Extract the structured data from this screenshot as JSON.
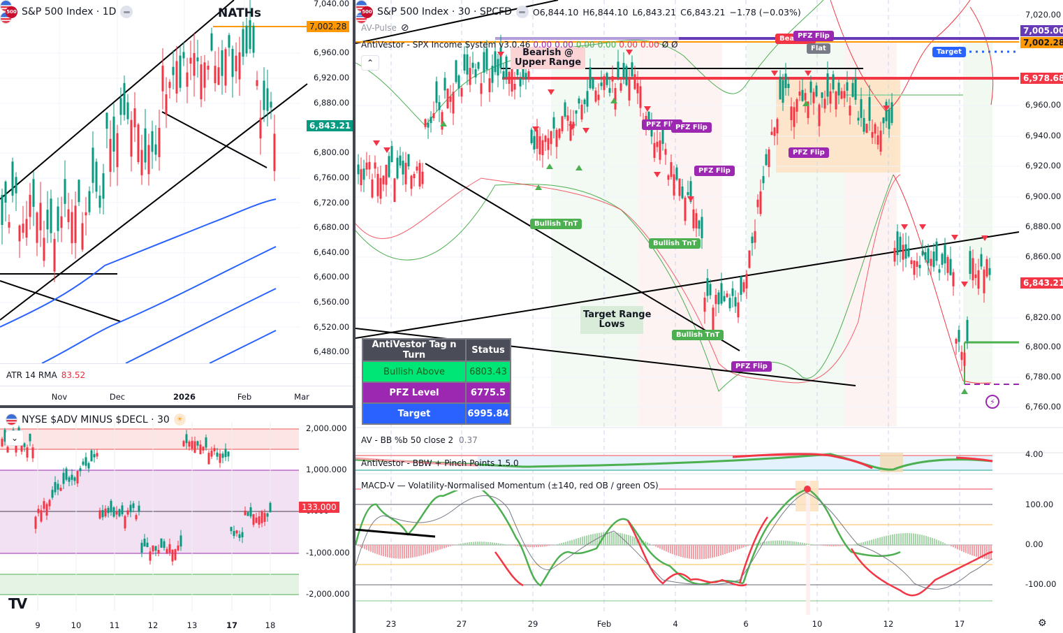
{
  "left_top": {
    "symbol_badge": "500",
    "title": "S&P 500 Index · 1D",
    "annotation": "NATHs",
    "price_ticks": [
      "7,040.00",
      "6,960.00",
      "6,920.00",
      "6,880.00",
      "6,800.00",
      "6,760.00",
      "6,720.00",
      "6,680.00",
      "6,640.00",
      "6,600.00",
      "6,560.00",
      "6,520.00",
      "6,480.00"
    ],
    "orange_tag": "7,002.28",
    "last_price_tag": "6,843.21",
    "atr_label": "ATR 14 RMA",
    "atr_value": "83.52",
    "x_ticks": [
      "Nov",
      "Dec",
      "2026",
      "Feb",
      "Mar"
    ]
  },
  "left_bottom": {
    "title": "NYSE $ADV MINUS $DECL · 30",
    "ticks": [
      "2,000.000",
      "1,000.000",
      "0.000",
      "-1,000.000",
      "-2,000.000"
    ],
    "last_value_tag": "133.000",
    "x_ticks": [
      "9",
      "10",
      "11",
      "12",
      "13",
      "17",
      "18"
    ],
    "collapse_icon": "chevron-down",
    "logo": "TV"
  },
  "main": {
    "symbol_badge": "500",
    "title": "S&P 500 Index · 30 · SPCFD",
    "ohlc": {
      "o": "O6,844.10",
      "h": "H6,844.10",
      "l": "L6,843.21",
      "c": "C6,843.21",
      "chg": "−1.78 (−0.03%)"
    },
    "pulse_label": "AV-Pulse",
    "system_label": "AntiVestor - SPX Income System v3.0.46",
    "system_values": [
      {
        "v": "0.00",
        "color": "#9c27b0"
      },
      {
        "v": "0.00",
        "color": "#9c27b0"
      },
      {
        "v": "0.00",
        "color": "#4caf50"
      },
      {
        "v": "0.00",
        "color": "#4caf50"
      },
      {
        "v": "0.00",
        "color": "#f23645"
      },
      {
        "v": "0.00",
        "color": "#f23645"
      },
      {
        "v": "Ø",
        "color": "#131722"
      },
      {
        "v": "Ø",
        "color": "#131722"
      }
    ],
    "price_ticks": [
      "7,020.00",
      "6,960.00",
      "6,940.00",
      "6,920.00",
      "6,900.00",
      "6,880.00",
      "6,860.00",
      "6,820.00",
      "6,800.00",
      "6,780.00",
      "6,760.00"
    ],
    "tags": {
      "purple": "7,005.00",
      "orange": "7,002.28",
      "red": "6,978.68",
      "last": "6,843.21"
    },
    "chips": {
      "target": "Target",
      "flat": "Flat",
      "bearish": "Bearish",
      "pfz_flip": "PFZ Flip",
      "bullish_tnt": "Bullish TnT"
    },
    "notes": {
      "bearish_upper": "Bearish @\nUpper Range",
      "target_lows": "Target Range\nLows"
    },
    "table": {
      "header": [
        "AntiVestor Tag n Turn",
        "Status"
      ],
      "rows": [
        {
          "label": "Bullish Above",
          "value": "6803.43",
          "bg": "#00e676",
          "fg": "#1b5e20"
        },
        {
          "label": "PFZ Level",
          "value": "6775.5",
          "bg": "#9c27b0",
          "fg": "#ffffff"
        },
        {
          "label": "Target",
          "value": "6995.84",
          "bg": "#2962ff",
          "fg": "#ffffff"
        }
      ]
    },
    "x_ticks": [
      "23",
      "27",
      "29",
      "Feb",
      "4",
      "6",
      "10",
      "12",
      "17"
    ]
  },
  "indicators": {
    "bbpb_label": "AV - BB %b 50 close 2",
    "bbpb_value": "0.37",
    "bbw_label": "AntiVestor - BBW + Pinch Points 1.5.0",
    "bbw_tick": "4.00",
    "macd_label": "MACD-V — Volatility-Normalised Momentum (±140, red OB / green OS)",
    "macd_ticks": [
      "100.00",
      "0.00",
      "-100.00"
    ]
  },
  "colors": {
    "up": "#089981",
    "down": "#f23645",
    "orange": "#ff9800",
    "purple": "#673ab7",
    "blue": "#2962ff",
    "green": "#4caf50"
  },
  "chart_data": [
    {
      "type": "candlestick",
      "title": "S&P 500 Index · 1D",
      "ylim": [
        6460,
        7040
      ],
      "x_ticks": [
        "Nov",
        "Dec",
        "2026",
        "Feb",
        "Mar"
      ],
      "annotations": [
        "NATHs",
        "7,002.28 all-time high line",
        "last 6,843.21"
      ],
      "indicator": {
        "name": "ATR 14 RMA",
        "value": 83.52
      }
    },
    {
      "type": "candlestick",
      "title": "NYSE $ADV MINUS $DECL · 30",
      "ylim": [
        -2200,
        2200
      ],
      "last": 133,
      "bands": [
        {
          "from": 1500,
          "to": 2000,
          "color": "red"
        },
        {
          "from": -1000,
          "to": 1000,
          "color": "purple"
        },
        {
          "from": -2000,
          "to": -1500,
          "color": "green"
        }
      ]
    },
    {
      "type": "candlestick",
      "title": "S&P 500 Index · 30 · SPCFD",
      "ylim": [
        6750,
        7030
      ],
      "ohlc": {
        "open": 6844.1,
        "high": 6844.1,
        "low": 6843.21,
        "close": 6843.21,
        "change": -1.78,
        "change_pct": -0.03
      },
      "levels": [
        {
          "name": "purple",
          "value": 7005.0
        },
        {
          "name": "ATH",
          "value": 7002.28
        },
        {
          "name": "resistance",
          "value": 6978.68
        },
        {
          "name": "Bullish Above",
          "value": 6803.43
        },
        {
          "name": "PFZ Level",
          "value": 6775.5
        },
        {
          "name": "Target",
          "value": 6995.84
        }
      ]
    },
    {
      "type": "line",
      "title": "MACD-V — Volatility-Normalised Momentum",
      "ylim": [
        -150,
        150
      ],
      "levels": [
        140,
        100,
        50,
        0,
        -50,
        -100,
        -140
      ]
    }
  ]
}
